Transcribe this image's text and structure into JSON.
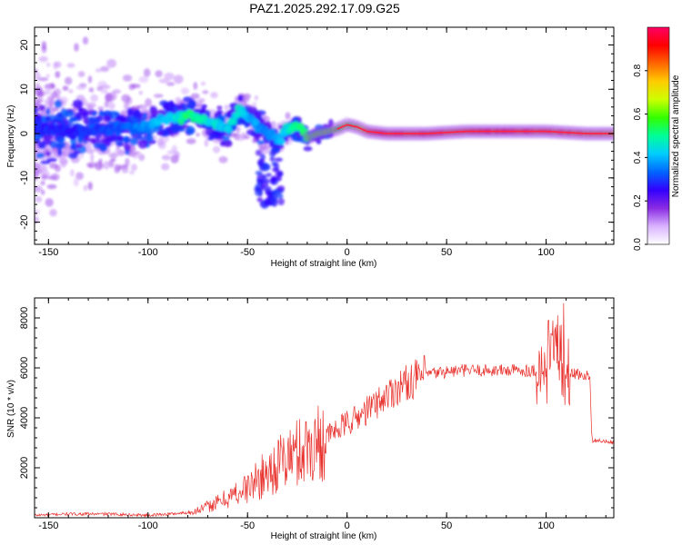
{
  "title": "PAZ1.2025.292.17.09.G25",
  "chart_data": [
    {
      "type": "heatmap",
      "xlabel": "Height of straight line (km)",
      "ylabel": "Frequency (Hz)",
      "xlim": [
        -157,
        134
      ],
      "ylim": [
        -25,
        24
      ],
      "xticks": [
        -150,
        -100,
        -50,
        0,
        50,
        100
      ],
      "yticks": [
        -20,
        -10,
        0,
        10,
        20
      ],
      "colorbar": {
        "label": "Normalized spectral amplitude",
        "range": [
          0,
          1
        ],
        "ticks": [
          "0.0",
          "0.2",
          "0.4",
          "0.6",
          "0.8"
        ],
        "colors": [
          "#ffffff",
          "#d9b3ff",
          "#8a2be2",
          "#3300ff",
          "#0066ff",
          "#00ccff",
          "#00ff99",
          "#33ff00",
          "#ccff00",
          "#ffcc00",
          "#ff6600",
          "#ff0000",
          "#ff0066"
        ]
      },
      "ridge": {
        "x": [
          -150,
          -130,
          -110,
          -100,
          -90,
          -80,
          -70,
          -60,
          -55,
          -50,
          -45,
          -40,
          -35,
          -30,
          -25,
          -20,
          -15,
          -10,
          -5,
          0,
          5,
          10,
          20,
          40,
          60,
          80,
          100,
          120,
          134
        ],
        "frequency": [
          1,
          0.5,
          1.5,
          1.5,
          3.5,
          4,
          3,
          1,
          5,
          4,
          2,
          0,
          -2,
          1,
          1.5,
          -1,
          0,
          0.5,
          1,
          2,
          1.5,
          0.5,
          0,
          0,
          0.5,
          0.5,
          0.5,
          0,
          0
        ],
        "amplitude": [
          0.3,
          0.3,
          0.35,
          0.4,
          0.45,
          0.55,
          0.5,
          0.45,
          0.5,
          0.45,
          0.4,
          0.4,
          0.4,
          0.5,
          0.55,
          0.6,
          0.6,
          0.6,
          0.65,
          0.7,
          0.7,
          0.85,
          0.95,
          0.9,
          0.9,
          0.95,
          0.9,
          0.85,
          0.8
        ]
      }
    },
    {
      "type": "line",
      "xlabel": "Height of straight line (km)",
      "ylabel": "SNR (10 * v/v)",
      "xlim": [
        -157,
        134
      ],
      "ylim": [
        0,
        8800
      ],
      "xticks": [
        -150,
        -100,
        -50,
        0,
        50,
        100
      ],
      "yticks": [
        2000,
        4000,
        6000,
        8000
      ],
      "color": "#e8322e",
      "series": [
        {
          "name": "SNR",
          "x": [
            -157,
            -140,
            -120,
            -100,
            -90,
            -80,
            -75,
            -70,
            -65,
            -60,
            -55,
            -50,
            -45,
            -40,
            -35,
            -30,
            -25,
            -20,
            -15,
            -10,
            -5,
            0,
            5,
            10,
            15,
            20,
            25,
            30,
            35,
            40,
            50,
            60,
            70,
            80,
            90,
            95,
            100,
            103,
            105,
            107,
            110,
            115,
            120,
            122,
            123,
            125,
            134
          ],
          "values": [
            100,
            150,
            150,
            100,
            150,
            200,
            300,
            450,
            600,
            800,
            1000,
            1200,
            1500,
            1800,
            2100,
            2400,
            2600,
            2800,
            3000,
            3300,
            3500,
            3800,
            4000,
            4300,
            4600,
            4900,
            5200,
            5400,
            5600,
            5750,
            5850,
            5900,
            5900,
            5900,
            5900,
            5900,
            5800,
            6000,
            7500,
            5800,
            5800,
            5750,
            5700,
            5700,
            3100,
            3100,
            3000
          ]
        }
      ]
    }
  ]
}
